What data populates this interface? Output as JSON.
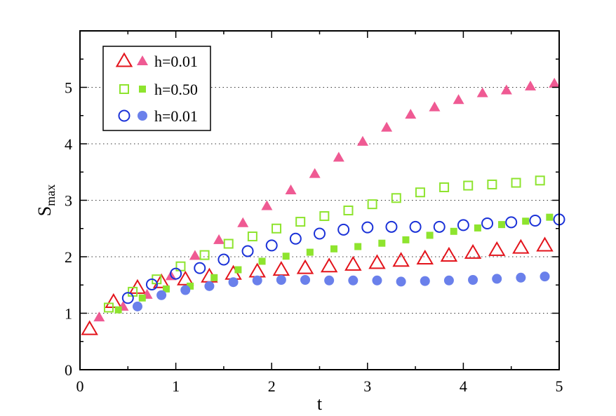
{
  "chart_data": {
    "type": "scatter",
    "title": "",
    "xlabel": "t",
    "ylabel": "S",
    "ylabel_subscript": "max",
    "xlim": [
      0,
      5
    ],
    "ylim": [
      0,
      6
    ],
    "xticks": [
      0,
      1,
      2,
      3,
      4,
      5
    ],
    "yticks": [
      0,
      1,
      2,
      3,
      4,
      5
    ],
    "grid": "horizontal dotted at y = 1..5",
    "legend_position": "top-left",
    "series": [
      {
        "name": "h=0.01",
        "label": "h=0.01",
        "color": "#e3141c",
        "marker": "triangle-open",
        "points": [
          [
            0.1,
            0.72
          ],
          [
            0.35,
            1.2
          ],
          [
            0.6,
            1.45
          ],
          [
            0.85,
            1.55
          ],
          [
            1.1,
            1.6
          ],
          [
            1.35,
            1.65
          ],
          [
            1.6,
            1.7
          ],
          [
            1.85,
            1.74
          ],
          [
            2.1,
            1.77
          ],
          [
            2.35,
            1.8
          ],
          [
            2.6,
            1.83
          ],
          [
            2.85,
            1.86
          ],
          [
            3.1,
            1.89
          ],
          [
            3.35,
            1.93
          ],
          [
            3.6,
            1.97
          ],
          [
            3.85,
            2.02
          ],
          [
            4.1,
            2.07
          ],
          [
            4.35,
            2.12
          ],
          [
            4.6,
            2.16
          ],
          [
            4.85,
            2.2
          ]
        ]
      },
      {
        "name": "h=0.01 (filled)",
        "label": "",
        "color": "#ef5a93",
        "marker": "triangle-filled",
        "points": [
          [
            0.2,
            0.93
          ],
          [
            0.45,
            1.12
          ],
          [
            0.7,
            1.33
          ],
          [
            0.95,
            1.66
          ],
          [
            1.2,
            2.02
          ],
          [
            1.45,
            2.3
          ],
          [
            1.7,
            2.6
          ],
          [
            1.95,
            2.9
          ],
          [
            2.2,
            3.18
          ],
          [
            2.45,
            3.47
          ],
          [
            2.7,
            3.76
          ],
          [
            2.95,
            4.04
          ],
          [
            3.2,
            4.29
          ],
          [
            3.45,
            4.52
          ],
          [
            3.7,
            4.65
          ],
          [
            3.95,
            4.78
          ],
          [
            4.2,
            4.9
          ],
          [
            4.45,
            4.95
          ],
          [
            4.7,
            5.02
          ],
          [
            4.95,
            5.07
          ]
        ]
      },
      {
        "name": "h=0.50",
        "label": "h=0.50",
        "color": "#8ee42e",
        "marker": "square-open",
        "points": [
          [
            0.3,
            1.1
          ],
          [
            0.55,
            1.38
          ],
          [
            0.8,
            1.6
          ],
          [
            1.05,
            1.83
          ],
          [
            1.3,
            2.03
          ],
          [
            1.55,
            2.23
          ],
          [
            1.8,
            2.36
          ],
          [
            2.05,
            2.5
          ],
          [
            2.3,
            2.62
          ],
          [
            2.55,
            2.72
          ],
          [
            2.8,
            2.82
          ],
          [
            3.05,
            2.93
          ],
          [
            3.3,
            3.04
          ],
          [
            3.55,
            3.14
          ],
          [
            3.8,
            3.23
          ],
          [
            4.05,
            3.26
          ],
          [
            4.3,
            3.28
          ],
          [
            4.55,
            3.31
          ],
          [
            4.8,
            3.35
          ]
        ]
      },
      {
        "name": "h=0.50 (filled)",
        "label": "",
        "color": "#8ee42e",
        "marker": "square-filled",
        "points": [
          [
            0.4,
            1.06
          ],
          [
            0.65,
            1.27
          ],
          [
            0.9,
            1.43
          ],
          [
            1.15,
            1.48
          ],
          [
            1.4,
            1.63
          ],
          [
            1.65,
            1.77
          ],
          [
            1.9,
            1.92
          ],
          [
            2.15,
            2.01
          ],
          [
            2.4,
            2.08
          ],
          [
            2.65,
            2.14
          ],
          [
            2.9,
            2.18
          ],
          [
            3.15,
            2.24
          ],
          [
            3.4,
            2.3
          ],
          [
            3.65,
            2.38
          ],
          [
            3.9,
            2.45
          ],
          [
            4.15,
            2.51
          ],
          [
            4.4,
            2.57
          ],
          [
            4.65,
            2.63
          ],
          [
            4.9,
            2.7
          ]
        ]
      },
      {
        "name": "h=0.01 (blue)",
        "label": "h=0.01",
        "color": "#1b32d8",
        "marker": "circle-open",
        "points": [
          [
            0.5,
            1.27
          ],
          [
            0.75,
            1.51
          ],
          [
            1.0,
            1.7
          ],
          [
            1.25,
            1.8
          ],
          [
            1.5,
            1.95
          ],
          [
            1.75,
            2.1
          ],
          [
            2.0,
            2.2
          ],
          [
            2.25,
            2.32
          ],
          [
            2.5,
            2.41
          ],
          [
            2.75,
            2.48
          ],
          [
            3.0,
            2.52
          ],
          [
            3.25,
            2.53
          ],
          [
            3.5,
            2.53
          ],
          [
            3.75,
            2.53
          ],
          [
            4.0,
            2.56
          ],
          [
            4.25,
            2.59
          ],
          [
            4.5,
            2.61
          ],
          [
            4.75,
            2.64
          ],
          [
            5.0,
            2.66
          ]
        ]
      },
      {
        "name": "h=0.01 (blue filled)",
        "label": "",
        "color": "#6a80eb",
        "marker": "circle-filled",
        "points": [
          [
            0.6,
            1.12
          ],
          [
            0.85,
            1.32
          ],
          [
            1.1,
            1.41
          ],
          [
            1.35,
            1.48
          ],
          [
            1.6,
            1.55
          ],
          [
            1.85,
            1.58
          ],
          [
            2.1,
            1.59
          ],
          [
            2.35,
            1.59
          ],
          [
            2.6,
            1.58
          ],
          [
            2.85,
            1.58
          ],
          [
            3.1,
            1.58
          ],
          [
            3.35,
            1.56
          ],
          [
            3.6,
            1.57
          ],
          [
            3.85,
            1.58
          ],
          [
            4.1,
            1.59
          ],
          [
            4.35,
            1.61
          ],
          [
            4.6,
            1.63
          ],
          [
            4.85,
            1.65
          ]
        ]
      }
    ]
  }
}
